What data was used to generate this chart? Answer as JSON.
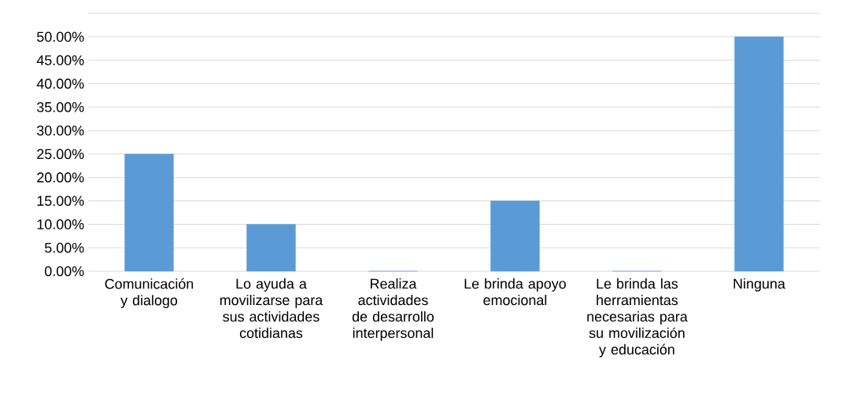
{
  "chart_data": {
    "type": "bar",
    "categories": [
      "Comunicación y dialogo",
      "Lo ayuda a movilizarse para sus actividades cotidianas",
      "Realiza actividades de desarrollo interpersonal",
      "Le brinda apoyo emocional",
      "Le brinda las herramientas necesarias para su movilización y educación",
      "Ninguna"
    ],
    "values": [
      25,
      10,
      0,
      15,
      0,
      50
    ],
    "color": "#5b9bd5",
    "ylim": [
      0,
      55
    ],
    "yticks": [
      {
        "value": 0,
        "label": "0.00%"
      },
      {
        "value": 5,
        "label": "5.00%"
      },
      {
        "value": 10,
        "label": "10.00%"
      },
      {
        "value": 15,
        "label": "15.00%"
      },
      {
        "value": 20,
        "label": "20.00%"
      },
      {
        "value": 25,
        "label": "25.00%"
      },
      {
        "value": 30,
        "label": "30.00%"
      },
      {
        "value": 35,
        "label": "35.00%"
      },
      {
        "value": 40,
        "label": "40.00%"
      },
      {
        "value": 45,
        "label": "45.00%"
      },
      {
        "value": 50,
        "label": "50.00%"
      },
      {
        "value": 55,
        "label": null
      }
    ],
    "grid": "y"
  }
}
